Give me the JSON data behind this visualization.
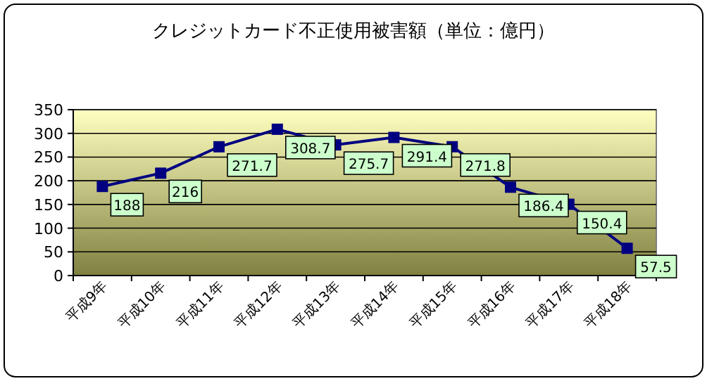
{
  "chart_data": {
    "type": "line",
    "title": "クレジットカード不正使用被害額（単位：億円）",
    "categories": [
      "平成9年",
      "平成10年",
      "平成11年",
      "平成12年",
      "平成13年",
      "平成14年",
      "平成15年",
      "平成16年",
      "平成17年",
      "平成18年"
    ],
    "values": [
      188,
      216,
      271.7,
      308.7,
      275.7,
      291.4,
      271.8,
      186.4,
      150.4,
      57.5
    ],
    "color": "#000080",
    "marker": "square",
    "line_style": "solid",
    "data_labels": true,
    "grid": "y",
    "ylim": [
      0,
      350
    ],
    "yticks": [
      0,
      50,
      100,
      150,
      200,
      250,
      300,
      350
    ]
  }
}
